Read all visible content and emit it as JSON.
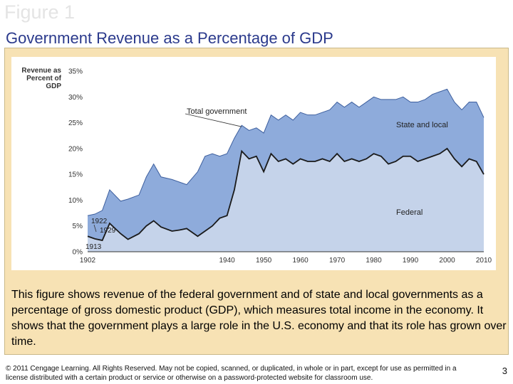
{
  "slide": {
    "figure_label": "Figure 1",
    "title": "Government Revenue as a Percentage of GDP",
    "caption": "This figure shows revenue of the federal government and of state and local governments as a percentage of gross domestic product (GDP), which measures total income in the economy. It shows that the government plays a large role in the U.S. economy and that its role has grown over time.",
    "footer": "© 2011 Cengage Learning. All Rights Reserved. May not be copied, scanned, or duplicated, in whole or in part, except for use as permitted in a license distributed with a certain product or service or otherwise on a password-protected website for classroom use.",
    "page_number": "3"
  },
  "chart_data": {
    "type": "area",
    "ylabel": "Revenue as Percent of GDP",
    "xlabel": "",
    "xlim": [
      1902,
      2010
    ],
    "ylim": [
      0,
      35
    ],
    "x_ticks": [
      1902,
      1940,
      1950,
      1960,
      1970,
      1980,
      1990,
      2000,
      2010
    ],
    "y_ticks": [
      0,
      5,
      10,
      15,
      20,
      25,
      30,
      35
    ],
    "y_tick_labels": [
      "0%",
      "5%",
      "10%",
      "15%",
      "20%",
      "25%",
      "30%",
      "35%"
    ],
    "colors": {
      "federal": "#c5d3ea",
      "state_local": "#8eabdb",
      "line": "#1a1a1a"
    },
    "series": [
      {
        "key": "total",
        "x": [
          1902,
          1904,
          1906,
          1908,
          1911,
          1913,
          1916,
          1918,
          1920,
          1922,
          1925,
          1927,
          1929,
          1932,
          1934,
          1936,
          1938,
          1940,
          1942,
          1944,
          1946,
          1948,
          1950,
          1952,
          1954,
          1956,
          1958,
          1960,
          1962,
          1964,
          1966,
          1968,
          1970,
          1972,
          1974,
          1976,
          1978,
          1980,
          1982,
          1984,
          1986,
          1988,
          1990,
          1992,
          1994,
          1996,
          1998,
          2000,
          2002,
          2004,
          2006,
          2008,
          2010
        ],
        "y": [
          7,
          7.3,
          8,
          12,
          9.8,
          10.2,
          11,
          14.5,
          17,
          14.5,
          14,
          13.5,
          13,
          15.5,
          18.5,
          19,
          18.5,
          19,
          22,
          24.5,
          23.5,
          24,
          23,
          26.5,
          25.5,
          26.5,
          25.5,
          27,
          26.5,
          26.5,
          27,
          27.5,
          29,
          28,
          29,
          28,
          29,
          30,
          29.5,
          29.5,
          29.5,
          30,
          29,
          29,
          29.5,
          30.5,
          31,
          31.5,
          29,
          27.5,
          29,
          29,
          26
        ]
      },
      {
        "key": "federal",
        "x": [
          1902,
          1904,
          1906,
          1908,
          1911,
          1913,
          1916,
          1918,
          1920,
          1922,
          1925,
          1927,
          1929,
          1932,
          1934,
          1936,
          1938,
          1940,
          1942,
          1944,
          1946,
          1948,
          1950,
          1952,
          1954,
          1956,
          1958,
          1960,
          1962,
          1964,
          1966,
          1968,
          1970,
          1972,
          1974,
          1976,
          1978,
          1980,
          1982,
          1984,
          1986,
          1988,
          1990,
          1992,
          1994,
          1996,
          1998,
          2000,
          2002,
          2004,
          2006,
          2008,
          2010
        ],
        "y": [
          3,
          2.5,
          2.2,
          5.5,
          3.5,
          2.4,
          3.5,
          5,
          6,
          4.8,
          4,
          4.2,
          4.5,
          3,
          4,
          5,
          6.5,
          7,
          12,
          19.5,
          18,
          18.5,
          15.5,
          19,
          17.5,
          18,
          17,
          18,
          17.5,
          17.5,
          18,
          17.5,
          19,
          17.5,
          18,
          17.5,
          18,
          19,
          18.5,
          17,
          17.5,
          18.5,
          18.5,
          17.5,
          18,
          18.5,
          19,
          20,
          18,
          16.5,
          18,
          17.5,
          15
        ]
      }
    ],
    "annotations": [
      {
        "text": "Total government"
      },
      {
        "text": "State and local"
      },
      {
        "text": "Federal"
      },
      {
        "text": "1922"
      },
      {
        "text": "1929"
      },
      {
        "text": "1913"
      }
    ]
  }
}
